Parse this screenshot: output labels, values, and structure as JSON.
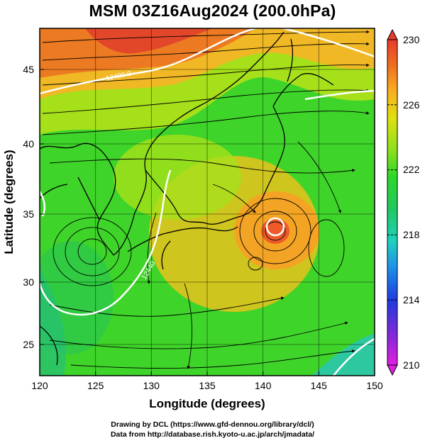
{
  "title": "MSM 03Z16Aug2024 (200.0hPa)",
  "axes": {
    "xlabel": "Longitude (degrees)",
    "ylabel": "Latitude  (degrees)",
    "xlim": [
      120,
      150
    ],
    "ylim": [
      22.4,
      47.6
    ],
    "xticks": [
      "120",
      "125",
      "130",
      "135",
      "140",
      "145",
      "150"
    ],
    "yticks": [
      "25",
      "30",
      "35",
      "40",
      "45"
    ]
  },
  "colorbar": {
    "min": 210,
    "max": 230,
    "labels": [
      "230",
      "226",
      "222",
      "218",
      "214",
      "210"
    ],
    "colors": [
      "#e020e0",
      "#7a2ad8",
      "#1e3be0",
      "#1e90e8",
      "#20d0c0",
      "#20c860",
      "#2ed82a",
      "#8ee01e",
      "#e0e010",
      "#f8b020",
      "#f07020",
      "#e83a2a"
    ]
  },
  "contours": {
    "color": "#ffffff",
    "labels": [
      "12400.0",
      "12440",
      "12320"
    ]
  },
  "credits": {
    "line1": "Drawing by DCL (https://www.gfd-dennou.org/library/dcl/)",
    "line2": "Data from http://database.rish.kyoto-u.ac.jp/arch/jmadata/"
  }
}
